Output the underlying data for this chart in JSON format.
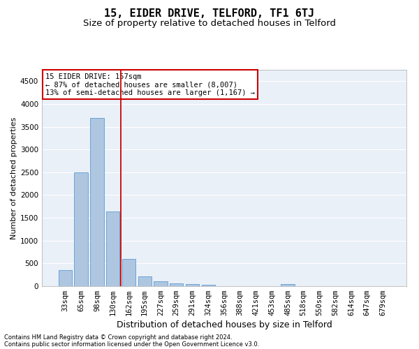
{
  "title": "15, EIDER DRIVE, TELFORD, TF1 6TJ",
  "subtitle": "Size of property relative to detached houses in Telford",
  "xlabel": "Distribution of detached houses by size in Telford",
  "ylabel": "Number of detached properties",
  "categories": [
    "33sqm",
    "65sqm",
    "98sqm",
    "130sqm",
    "162sqm",
    "195sqm",
    "227sqm",
    "259sqm",
    "291sqm",
    "324sqm",
    "356sqm",
    "388sqm",
    "421sqm",
    "453sqm",
    "485sqm",
    "518sqm",
    "550sqm",
    "582sqm",
    "614sqm",
    "647sqm",
    "679sqm"
  ],
  "values": [
    355,
    2500,
    3700,
    1640,
    590,
    220,
    108,
    62,
    43,
    30,
    0,
    0,
    0,
    0,
    52,
    0,
    0,
    0,
    0,
    0,
    0
  ],
  "bar_color": "#aec6e0",
  "bar_edge_color": "#5b9bd5",
  "vline_color": "#cc0000",
  "vline_x_index": 3.5,
  "annotation_text": "15 EIDER DRIVE: 157sqm\n← 87% of detached houses are smaller (8,007)\n13% of semi-detached houses are larger (1,167) →",
  "annotation_box_color": "#ffffff",
  "annotation_box_edge": "#cc0000",
  "ylim": [
    0,
    4750
  ],
  "yticks": [
    0,
    500,
    1000,
    1500,
    2000,
    2500,
    3000,
    3500,
    4000,
    4500
  ],
  "background_color": "#eaf0f8",
  "grid_color": "#ffffff",
  "footer_line1": "Contains HM Land Registry data © Crown copyright and database right 2024.",
  "footer_line2": "Contains public sector information licensed under the Open Government Licence v3.0.",
  "title_fontsize": 11,
  "subtitle_fontsize": 9.5,
  "xlabel_fontsize": 9,
  "ylabel_fontsize": 8,
  "tick_fontsize": 7.5,
  "annotation_fontsize": 7.5,
  "footer_fontsize": 6
}
